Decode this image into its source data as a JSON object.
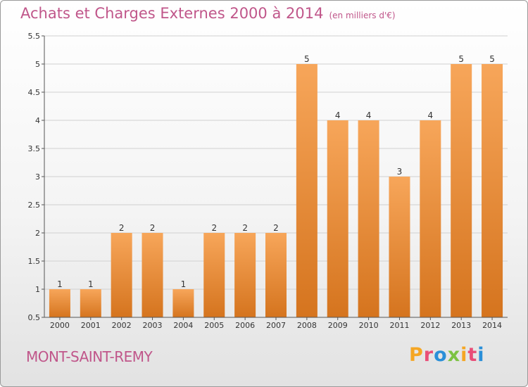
{
  "header": {
    "title": "Achats et Charges Externes 2000 à 2014",
    "unit": "(en milliers d'€)"
  },
  "footer": {
    "commune": "MONT-SAINT-REMY",
    "logo_text": "Proxiti"
  },
  "colors": {
    "bar_light": "#f7a65a",
    "bar_dark": "#d5741e",
    "title": "#c0568a",
    "axis": "#555555",
    "grid": "#d0d0d0",
    "logo": [
      "#f5a623",
      "#e94e77",
      "#2a8fd8",
      "#7cc242",
      "#f5a623",
      "#e94e77",
      "#2a8fd8"
    ]
  },
  "chart_data": {
    "type": "bar",
    "categories": [
      "2000",
      "2001",
      "2002",
      "2003",
      "2004",
      "2005",
      "2006",
      "2007",
      "2008",
      "2009",
      "2010",
      "2011",
      "2012",
      "2013",
      "2014"
    ],
    "values": [
      1,
      1,
      2,
      2,
      1,
      2,
      2,
      2,
      5,
      4,
      4,
      3,
      4,
      5,
      5
    ],
    "data_labels": [
      "1",
      "1",
      "2",
      "2",
      "1",
      "2",
      "2",
      "2",
      "5",
      "4",
      "4",
      "3",
      "4",
      "5",
      "5"
    ],
    "title": "Achats et Charges Externes 2000 à 2014",
    "xlabel": "",
    "ylabel": "",
    "ylim": [
      0.5,
      5.5
    ],
    "yticks": [
      0.5,
      1,
      1.5,
      2,
      2.5,
      3,
      3.5,
      4,
      4.5,
      5,
      5.5
    ],
    "ytick_labels": [
      "0.5",
      "1",
      "1.5",
      "2",
      "2.5",
      "3",
      "3.5",
      "4",
      "4.5",
      "5",
      "5.5"
    ],
    "grid": true,
    "legend": "none"
  }
}
